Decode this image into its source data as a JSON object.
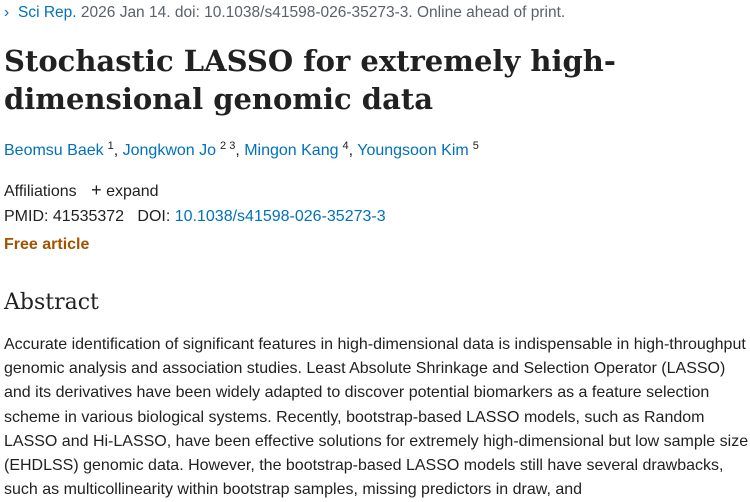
{
  "citation": {
    "chevron": "›",
    "journal": "Sci Rep.",
    "rest": " 2026 Jan 14. doi: 10.1038/s41598-026-35273-3. Online ahead of print."
  },
  "title": "Stochastic LASSO for extremely high-dimensional genomic data",
  "authors": [
    {
      "name": "Beomsu Baek",
      "aff": "1"
    },
    {
      "name": "Jongkwon Jo",
      "aff": "2 3"
    },
    {
      "name": "Mingon Kang",
      "aff": "4"
    },
    {
      "name": "Youngsoon Kim",
      "aff": "5"
    }
  ],
  "affiliations": {
    "label": "Affiliations",
    "expand_icon": "+",
    "expand_label": "expand"
  },
  "ids": {
    "pmid_label": "PMID: ",
    "pmid": "41535372",
    "doi_label": "DOI: ",
    "doi": "10.1038/s41598-026-35273-3"
  },
  "free_article": "Free article",
  "abstract": {
    "heading": "Abstract",
    "text": "Accurate identification of significant features in high-dimensional data is indispensable in high-throughput genomic analysis and association studies. Least Absolute Shrinkage and Selection Operator (LASSO) and its derivatives have been widely adapted to discover potential biomarkers as a feature selection scheme in various biological systems. Recently, bootstrap-based LASSO models, such as Random LASSO and Hi-LASSO, have been effective solutions for extremely high-dimensional but low sample size (EHDLSS) genomic data. However, the bootstrap-based LASSO models still have several drawbacks, such as multicollinearity within bootstrap samples, missing predictors in draw, and"
  },
  "colors": {
    "link": "#0071bc",
    "free": "#a15300",
    "text": "#212121"
  }
}
